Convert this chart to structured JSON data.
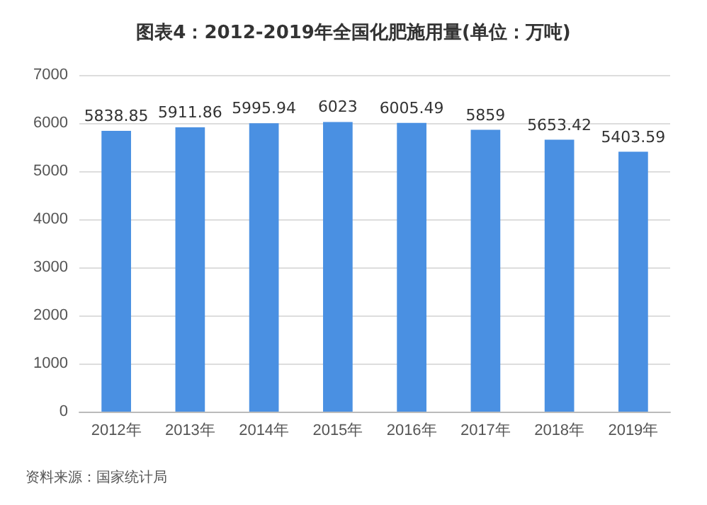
{
  "chart_data": {
    "type": "bar",
    "title": "图表4：2012-2019年全国化肥施用量(单位：万吨)",
    "categories": [
      "2012年",
      "2013年",
      "2014年",
      "2015年",
      "2016年",
      "2017年",
      "2018年",
      "2019年"
    ],
    "values": [
      5838.85,
      5911.86,
      5995.94,
      6023,
      6005.49,
      5859,
      5653.42,
      5403.59
    ],
    "color": "#4a90e2",
    "ylim": [
      0,
      7000
    ],
    "yticks": [
      0,
      1000,
      2000,
      3000,
      4000,
      5000,
      6000,
      7000
    ],
    "grid": "y",
    "data_labels": true,
    "annotations": [
      "资料来源：国家统计局"
    ]
  }
}
